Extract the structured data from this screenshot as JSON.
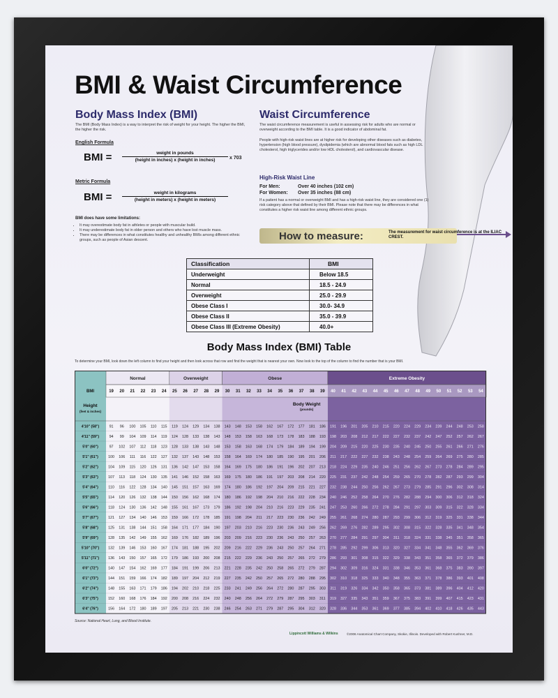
{
  "title": "BMI & Waist Circumference",
  "bmi_section": {
    "heading": "Body Mass Index (BMI)",
    "intro": "The BMI (Body Mass Index) is a way to interpret the risk of weight for your height. The higher the BMI, the higher the risk.",
    "english_label": "English Formula",
    "english_formula": {
      "lhs": "BMI =",
      "numerator": "weight in pounds",
      "denominator": "(height in inches) x (height in inches)",
      "multiplier": "x 703"
    },
    "metric_label": "Metric Formula",
    "metric_formula": {
      "lhs": "BMI =",
      "numerator": "weight in kilograms",
      "denominator": "(height in meters) x (height in meters)"
    },
    "limitations_heading": "BMI does have some limitations:",
    "limitations": [
      "It may overestimate body fat in athletes or people with muscular build.",
      "It may underestimate body fat in older person and others who have lost muscle mass.",
      "There may be differences in what constitutes healthy and unhealthy BMIs among different ethnic groups, such as people of Asian descent."
    ]
  },
  "waist_section": {
    "heading": "Waist Circumference",
    "paragraphs": [
      "The waist circumference measurement is useful in assessing risk for adults who are normal or overweight according to the BMI table. It is a good indicator of abdominal fat.",
      "People with high-risk waist lines are at higher risk for developing other diseases such as diabetes, hypertension (high blood pressure), dyslipidemia (which are abnormal blood fats such as high LDL cholesterol, high triglycerides and/or low HDL cholesterol), and cardiovascular disease."
    ],
    "high_risk_heading": "High-Risk Waist Line",
    "men_label": "For Men:",
    "men_value": "Over 40 inches (102 cm)",
    "women_label": "For Women:",
    "women_value": "Over 35 inches (88 cm)",
    "note": "If a patient has a normal or overweight BMI and has a high-risk waist line, they are considered one (1) risk category above that defined by their BMI. Please note that there may be differences in what constitutes a higher risk waist line among different ethnic groups."
  },
  "how_to_measure": {
    "label": "How to measure:",
    "text": "The measurement for waist circumference is at the ILIAC CREST."
  },
  "classification_table": {
    "headers": [
      "Classification",
      "BMI"
    ],
    "rows": [
      [
        "Underweight",
        "Below 18.5"
      ],
      [
        "Normal",
        "18.5 - 24.9"
      ],
      [
        "Overweight",
        "25.0 - 29.9"
      ],
      [
        "Obese Class I",
        "30.0- 34.9"
      ],
      [
        "Obese Class II",
        "35.0 - 39.9"
      ],
      [
        "Obese Class III (Extreme Obesity)",
        "40.0+"
      ]
    ]
  },
  "bmi_table": {
    "title": "Body Mass Index (BMI) Table",
    "instructions": "To determine your BMI, look down the left column to find your height and then look across that row and find the weight that is nearest your own. Now look to the top of the column to find the number that is your BMI.",
    "groups": [
      "Normal",
      "Overweight",
      "Obese",
      "Extreme Obesity"
    ],
    "bmi_label": "BMI",
    "bmi_values": [
      19,
      20,
      21,
      22,
      23,
      24,
      25,
      26,
      27,
      28,
      29,
      30,
      31,
      32,
      33,
      34,
      35,
      36,
      37,
      38,
      39,
      40,
      41,
      42,
      43,
      44,
      45,
      46,
      47,
      48,
      49,
      50,
      51,
      52,
      53,
      54
    ],
    "height_label": "Height",
    "height_units": "(feet & inches)",
    "weight_label": "Body Weight",
    "weight_units": "(pounds)",
    "rows": [
      {
        "height": "4'10\" (58\")",
        "weights": [
          91,
          96,
          100,
          105,
          110,
          115,
          119,
          124,
          129,
          134,
          138,
          143,
          148,
          153,
          158,
          162,
          167,
          172,
          177,
          181,
          186,
          191,
          196,
          201,
          205,
          210,
          215,
          220,
          224,
          229,
          234,
          239,
          244,
          248,
          253,
          258
        ]
      },
      {
        "height": "4'11\" (59\")",
        "weights": [
          94,
          99,
          104,
          109,
          114,
          119,
          124,
          128,
          133,
          138,
          143,
          148,
          153,
          158,
          163,
          168,
          173,
          178,
          183,
          188,
          193,
          198,
          203,
          208,
          212,
          217,
          222,
          227,
          232,
          237,
          242,
          247,
          252,
          257,
          262,
          267
        ]
      },
      {
        "height": "5'0\" (60\")",
        "weights": [
          97,
          102,
          107,
          112,
          118,
          123,
          128,
          133,
          138,
          143,
          148,
          153,
          158,
          163,
          168,
          174,
          179,
          184,
          189,
          194,
          199,
          204,
          209,
          215,
          220,
          225,
          230,
          235,
          240,
          245,
          250,
          255,
          261,
          266,
          271,
          276
        ]
      },
      {
        "height": "5'1\" (61\")",
        "weights": [
          100,
          106,
          111,
          116,
          122,
          127,
          132,
          137,
          143,
          148,
          153,
          158,
          164,
          169,
          174,
          180,
          185,
          190,
          195,
          201,
          206,
          211,
          217,
          222,
          227,
          232,
          238,
          243,
          248,
          254,
          259,
          264,
          269,
          275,
          280,
          285
        ]
      },
      {
        "height": "5'2\" (62\")",
        "weights": [
          104,
          109,
          115,
          120,
          126,
          131,
          136,
          142,
          147,
          153,
          158,
          164,
          169,
          175,
          180,
          186,
          191,
          196,
          202,
          207,
          213,
          218,
          224,
          229,
          235,
          240,
          246,
          251,
          256,
          262,
          267,
          273,
          278,
          284,
          289,
          295
        ]
      },
      {
        "height": "5'3\" (63\")",
        "weights": [
          107,
          113,
          118,
          124,
          130,
          135,
          141,
          146,
          152,
          158,
          163,
          169,
          175,
          180,
          186,
          191,
          197,
          203,
          208,
          214,
          220,
          225,
          231,
          237,
          242,
          248,
          254,
          259,
          265,
          270,
          278,
          282,
          287,
          293,
          299,
          304
        ]
      },
      {
        "height": "5'4\" (64\")",
        "weights": [
          110,
          116,
          122,
          128,
          134,
          140,
          145,
          151,
          157,
          163,
          169,
          174,
          180,
          186,
          192,
          197,
          204,
          209,
          215,
          221,
          227,
          232,
          238,
          244,
          250,
          256,
          262,
          267,
          273,
          279,
          285,
          291,
          296,
          302,
          308,
          314
        ]
      },
      {
        "height": "5'5\" (65\")",
        "weights": [
          114,
          120,
          126,
          132,
          138,
          144,
          150,
          156,
          162,
          168,
          174,
          180,
          186,
          192,
          198,
          204,
          210,
          216,
          222,
          228,
          234,
          240,
          246,
          252,
          258,
          264,
          270,
          276,
          282,
          288,
          294,
          300,
          306,
          312,
          318,
          324
        ]
      },
      {
        "height": "5'6\" (66\")",
        "weights": [
          118,
          124,
          130,
          136,
          142,
          148,
          155,
          161,
          167,
          173,
          179,
          186,
          192,
          198,
          204,
          210,
          216,
          223,
          229,
          235,
          241,
          247,
          253,
          260,
          266,
          272,
          278,
          284,
          291,
          297,
          303,
          309,
          315,
          322,
          328,
          334
        ]
      },
      {
        "height": "5'7\" (67\")",
        "weights": [
          121,
          127,
          134,
          140,
          146,
          153,
          159,
          166,
          172,
          178,
          185,
          191,
          198,
          204,
          211,
          217,
          223,
          230,
          236,
          242,
          249,
          255,
          261,
          268,
          274,
          280,
          287,
          293,
          299,
          306,
          312,
          319,
          325,
          331,
          338,
          344
        ]
      },
      {
        "height": "5'8\" (68\")",
        "weights": [
          125,
          131,
          138,
          144,
          151,
          158,
          164,
          171,
          177,
          184,
          190,
          197,
          203,
          210,
          216,
          223,
          230,
          236,
          243,
          249,
          256,
          262,
          269,
          276,
          282,
          289,
          295,
          302,
          308,
          315,
          322,
          328,
          335,
          341,
          348,
          354
        ]
      },
      {
        "height": "5'9\" (69\")",
        "weights": [
          128,
          135,
          142,
          149,
          155,
          162,
          169,
          176,
          182,
          189,
          196,
          203,
          209,
          216,
          223,
          230,
          236,
          243,
          250,
          257,
          263,
          270,
          277,
          284,
          291,
          297,
          304,
          311,
          318,
          324,
          331,
          338,
          345,
          351,
          358,
          365
        ]
      },
      {
        "height": "5'10\" (70\")",
        "weights": [
          132,
          139,
          146,
          153,
          160,
          167,
          174,
          181,
          188,
          195,
          202,
          209,
          216,
          222,
          229,
          236,
          243,
          250,
          257,
          264,
          271,
          278,
          285,
          292,
          299,
          306,
          313,
          320,
          327,
          334,
          341,
          348,
          355,
          362,
          369,
          376
        ]
      },
      {
        "height": "5'11\" (71\")",
        "weights": [
          136,
          143,
          150,
          157,
          165,
          172,
          179,
          186,
          193,
          200,
          208,
          215,
          222,
          229,
          236,
          243,
          250,
          257,
          265,
          272,
          279,
          286,
          293,
          301,
          308,
          315,
          322,
          329,
          338,
          343,
          351,
          358,
          365,
          372,
          379,
          386
        ]
      },
      {
        "height": "6'0\" (72\")",
        "weights": [
          140,
          147,
          154,
          162,
          169,
          177,
          184,
          191,
          199,
          206,
          213,
          221,
          228,
          235,
          242,
          250,
          258,
          265,
          272,
          279,
          287,
          294,
          302,
          309,
          316,
          324,
          331,
          338,
          346,
          353,
          361,
          368,
          375,
          383,
          390,
          397
        ]
      },
      {
        "height": "6'1\" (73\")",
        "weights": [
          144,
          151,
          159,
          166,
          174,
          182,
          189,
          197,
          204,
          212,
          219,
          227,
          235,
          242,
          250,
          257,
          265,
          272,
          280,
          288,
          295,
          302,
          310,
          318,
          325,
          333,
          340,
          348,
          355,
          363,
          371,
          378,
          386,
          393,
          401,
          408
        ]
      },
      {
        "height": "6'2\" (74\")",
        "weights": [
          148,
          155,
          163,
          171,
          179,
          186,
          194,
          202,
          210,
          218,
          225,
          233,
          241,
          249,
          256,
          264,
          272,
          280,
          287,
          295,
          303,
          311,
          319,
          326,
          334,
          342,
          350,
          358,
          365,
          373,
          381,
          389,
          396,
          404,
          412,
          420
        ]
      },
      {
        "height": "6'3\" (75\")",
        "weights": [
          152,
          160,
          168,
          176,
          184,
          192,
          200,
          208,
          216,
          224,
          232,
          240,
          248,
          256,
          264,
          272,
          279,
          287,
          295,
          303,
          311,
          319,
          327,
          335,
          343,
          351,
          359,
          367,
          375,
          383,
          391,
          399,
          407,
          415,
          423,
          431
        ]
      },
      {
        "height": "6'4\" (76\")",
        "weights": [
          156,
          164,
          172,
          180,
          189,
          197,
          205,
          213,
          221,
          230,
          238,
          246,
          254,
          263,
          271,
          279,
          287,
          295,
          304,
          312,
          320,
          328,
          336,
          344,
          353,
          361,
          369,
          377,
          385,
          394,
          402,
          410,
          418,
          426,
          435,
          443
        ]
      }
    ],
    "source": "Source: National Heart, Lung, and Blood Institute.",
    "publisher": "Lippincott Williams & Wilkins",
    "credit": "©2006 Anatomical Chart Company, Skokie, Illinois. Developed with Robert Kushner, M.D."
  }
}
